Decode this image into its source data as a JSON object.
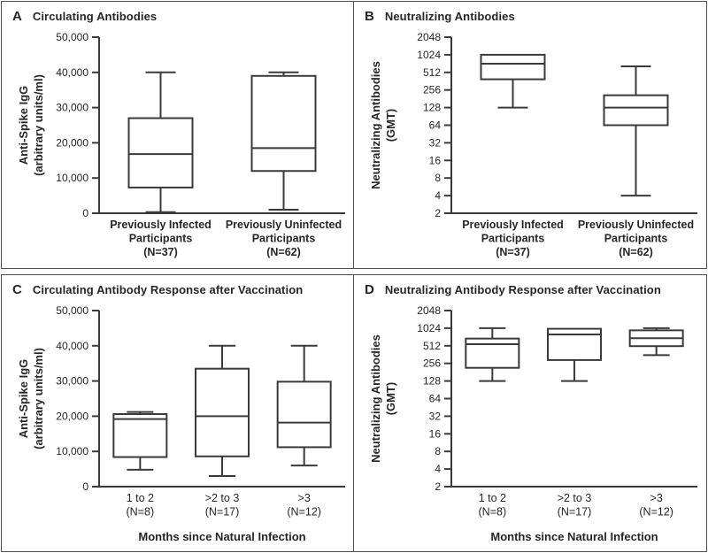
{
  "figure": {
    "background": "#ffffff",
    "panel_border": "#4f4f4f",
    "stroke": "#3a3a3a",
    "text": "#262626"
  },
  "chart_data": [
    {
      "panel": "A",
      "type": "box",
      "title": "Circulating Antibodies",
      "y_label_lines": [
        "Anti-Spike IgG",
        "(arbitrary units/ml)"
      ],
      "y_scale": "linear",
      "y_min": 0,
      "y_max": 50000,
      "y_ticks": [
        0,
        10000,
        20000,
        30000,
        40000,
        50000
      ],
      "y_tick_labels": [
        "0",
        "10,000",
        "20,000",
        "30,000",
        "40,000",
        "50,000"
      ],
      "x_label": "",
      "category_bold": true,
      "categories": [
        {
          "lines": [
            "Previously Infected",
            "Participants",
            "(N=37)"
          ]
        },
        {
          "lines": [
            "Previously Uninfected",
            "Participants",
            "(N=62)"
          ]
        }
      ],
      "boxes": [
        {
          "min": 300,
          "q1": 7300,
          "median": 16800,
          "q3": 27000,
          "max": 40000
        },
        {
          "min": 1000,
          "q1": 12000,
          "median": 18500,
          "q3": 39000,
          "max": 40000
        }
      ]
    },
    {
      "panel": "B",
      "type": "box",
      "title": "Neutralizing Antibodies",
      "y_label_lines": [
        "Neutralizing Antibodies",
        "(GMT)"
      ],
      "y_scale": "log2",
      "y_min": 2,
      "y_max": 2048,
      "y_ticks": [
        2,
        4,
        8,
        16,
        32,
        64,
        128,
        256,
        512,
        1024,
        2048
      ],
      "y_tick_labels": [
        "2",
        "4",
        "8",
        "16",
        "32",
        "64",
        "128",
        "256",
        "512",
        "1024",
        "2048"
      ],
      "x_label": "",
      "category_bold": true,
      "categories": [
        {
          "lines": [
            "Previously Infected",
            "Participants",
            "(N=37)"
          ]
        },
        {
          "lines": [
            "Previously Uninfected",
            "Participants",
            "(N=62)"
          ]
        }
      ],
      "boxes": [
        {
          "min": 128,
          "q1": 390,
          "median": 720,
          "q3": 1024,
          "max": 1024
        },
        {
          "min": 4,
          "q1": 64,
          "median": 128,
          "q3": 208,
          "max": 650
        }
      ]
    },
    {
      "panel": "C",
      "type": "box",
      "title": "Circulating Antibody Response after Vaccination",
      "y_label_lines": [
        "Anti-Spike IgG",
        "(arbitrary units/ml)"
      ],
      "y_scale": "linear",
      "y_min": 0,
      "y_max": 50000,
      "y_ticks": [
        0,
        10000,
        20000,
        30000,
        40000,
        50000
      ],
      "y_tick_labels": [
        "0",
        "10,000",
        "20,000",
        "30,000",
        "40,000",
        "50,000"
      ],
      "x_label": "Months since Natural Infection",
      "category_bold": false,
      "categories": [
        {
          "lines": [
            "1 to 2",
            "(N=8)"
          ]
        },
        {
          "lines": [
            ">2 to 3",
            "(N=17)"
          ]
        },
        {
          "lines": [
            ">3",
            "(N=12)"
          ]
        }
      ],
      "boxes": [
        {
          "min": 4800,
          "q1": 8400,
          "median": 19200,
          "q3": 20600,
          "max": 21200
        },
        {
          "min": 3000,
          "q1": 8600,
          "median": 20000,
          "q3": 33500,
          "max": 40000
        },
        {
          "min": 6000,
          "q1": 11200,
          "median": 18200,
          "q3": 29800,
          "max": 40000
        }
      ]
    },
    {
      "panel": "D",
      "type": "box",
      "title": "Neutralizing Antibody Response after Vaccination",
      "y_label_lines": [
        "Neutralizing Antibodies",
        "(GMT)"
      ],
      "y_scale": "log2",
      "y_min": 2,
      "y_max": 2048,
      "y_ticks": [
        2,
        4,
        8,
        16,
        32,
        64,
        128,
        256,
        512,
        1024,
        2048
      ],
      "y_tick_labels": [
        "2",
        "4",
        "8",
        "16",
        "32",
        "64",
        "128",
        "256",
        "512",
        "1024",
        "2048"
      ],
      "x_label": "Months since Natural Infection",
      "category_bold": false,
      "categories": [
        {
          "lines": [
            "1 to 2",
            "(N=8)"
          ]
        },
        {
          "lines": [
            ">2 to 3",
            "(N=17)"
          ]
        },
        {
          "lines": [
            ">3",
            "(N=12)"
          ]
        }
      ],
      "boxes": [
        {
          "min": 128,
          "q1": 215,
          "median": 545,
          "q3": 680,
          "max": 1024
        },
        {
          "min": 128,
          "q1": 292,
          "median": 800,
          "q3": 1000,
          "max": 1000
        },
        {
          "min": 355,
          "q1": 505,
          "median": 690,
          "q3": 940,
          "max": 1024
        }
      ]
    }
  ]
}
